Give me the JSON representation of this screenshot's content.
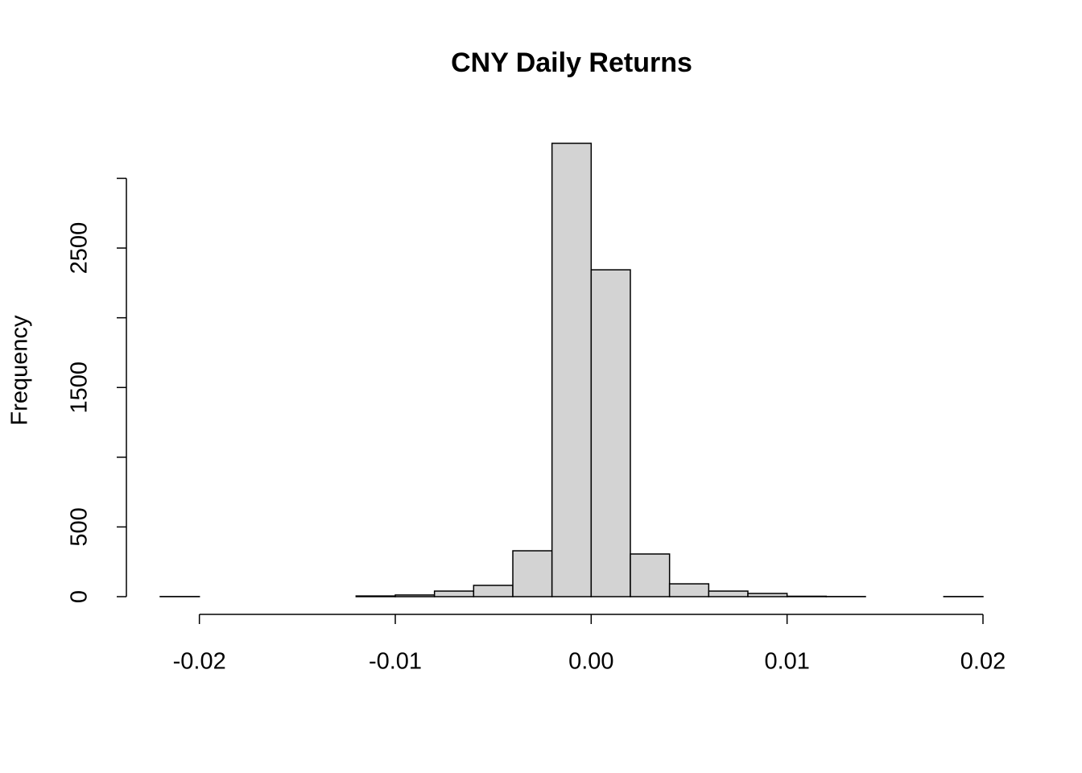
{
  "chart_data": {
    "type": "histogram",
    "title": "CNY Daily Returns",
    "y_label": "Frequency",
    "bins": [
      -0.022,
      -0.02,
      -0.018,
      -0.016,
      -0.014,
      -0.012,
      -0.01,
      -0.008,
      -0.006,
      -0.004,
      -0.002,
      0,
      0.002,
      0.004,
      0.006,
      0.008,
      0.01,
      0.012,
      0.014,
      0.016,
      0.018,
      0.02
    ],
    "values": [
      1,
      0,
      0,
      0,
      0,
      5,
      12,
      40,
      81,
      329,
      3251,
      2344,
      306,
      92,
      40,
      23,
      3,
      1,
      0,
      0,
      1
    ],
    "color": "#d3d3d3",
    "xlim": [
      -0.022,
      0.02
    ],
    "xticks": [
      {
        "value": -0.02,
        "label": "-0.02"
      },
      {
        "value": -0.01,
        "label": "-0.01"
      },
      {
        "value": 0,
        "label": "0.00"
      },
      {
        "value": 0.01,
        "label": "0.01"
      },
      {
        "value": 0.02,
        "label": "0.02"
      }
    ],
    "ylim": [
      0,
      3251
    ],
    "yticks": [
      0,
      500,
      {
        "value": 1000,
        "label": null
      },
      1500,
      {
        "value": 2000,
        "label": null
      },
      2500,
      {
        "value": 3000,
        "label": null
      }
    ]
  }
}
